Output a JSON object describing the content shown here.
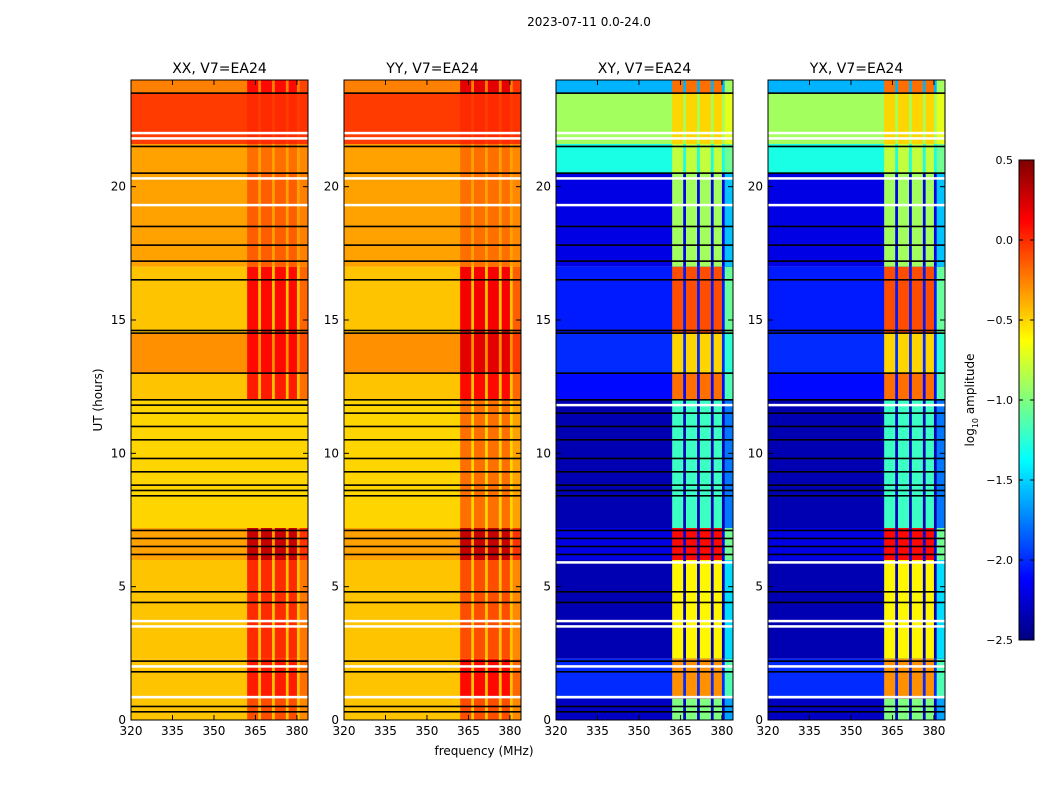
{
  "chart_data": {
    "type": "heatmap",
    "title": "2023-07-11 0.0-24.0",
    "xlabel": "frequency (MHz)",
    "ylabel": "UT (hours)",
    "xlim": [
      320,
      384
    ],
    "ylim": [
      0,
      24
    ],
    "xticks": [
      "320",
      "335",
      "350",
      "365",
      "380"
    ],
    "xtick_values": [
      320,
      335,
      350,
      365,
      380
    ],
    "yticks": [
      "0",
      "5",
      "10",
      "15",
      "20"
    ],
    "ytick_values": [
      0,
      5,
      10,
      15,
      20
    ],
    "colorbar": {
      "label_prefix": "log",
      "label_sub": "10",
      "label_suffix": " amplitude",
      "range": [
        -2.5,
        0.5
      ],
      "ticks": [
        "0.5",
        "0.0",
        "−0.5",
        "−1.0",
        "−1.5",
        "−2.0",
        "−2.5"
      ],
      "tick_values": [
        0.5,
        0.0,
        -0.5,
        -1.0,
        -1.5,
        -2.0,
        -2.5
      ],
      "colormap": "jet"
    },
    "band_columns_mhz": [
      [
        362,
        366
      ],
      [
        367,
        371
      ],
      [
        372,
        376
      ],
      [
        377,
        380
      ]
    ],
    "panels": [
      {
        "title": "XX, V7=EA24",
        "rows": [
          {
            "t": [
              0,
              0.8
            ],
            "bg": -0.45,
            "hi": -0.1
          },
          {
            "t": [
              0.8,
              2.3
            ],
            "bg": -0.45,
            "hi": 0.05
          },
          {
            "t": [
              2.3,
              6.0
            ],
            "bg": -0.45,
            "hi": 0.0
          },
          {
            "t": [
              6.0,
              7.2
            ],
            "bg": -0.35,
            "hi": 0.3
          },
          {
            "t": [
              7.2,
              12.0
            ],
            "bg": -0.5,
            "hi": -0.5
          },
          {
            "t": [
              12.0,
              13.0
            ],
            "bg": -0.45,
            "hi": 0.05
          },
          {
            "t": [
              13.0,
              14.5
            ],
            "bg": -0.3,
            "hi": 0.1
          },
          {
            "t": [
              14.5,
              17.0
            ],
            "bg": -0.45,
            "hi": 0.1
          },
          {
            "t": [
              17.0,
              20.5
            ],
            "bg": -0.35,
            "hi": -0.15
          },
          {
            "t": [
              20.5,
              21.6
            ],
            "bg": -0.35,
            "hi": -0.2
          },
          {
            "t": [
              21.6,
              23.5
            ],
            "bg": -0.05,
            "hi": 0.0
          },
          {
            "t": [
              23.5,
              24.0
            ],
            "bg": -0.25,
            "hi": 0.1
          }
        ],
        "black_lines": [
          0.3,
          0.5,
          1.8,
          2.2,
          4.4,
          4.8,
          6.2,
          6.5,
          6.8,
          7.1,
          8.4,
          8.6,
          8.8,
          9.3,
          9.8,
          10.5,
          11.0,
          11.5,
          11.8,
          12.0,
          13.0,
          14.5,
          14.6,
          16.5,
          17.2,
          17.8,
          18.5,
          20.5,
          21.5,
          23.5
        ],
        "white_lines": [
          0.85,
          2.0,
          3.5,
          3.7,
          19.3,
          20.3,
          21.8,
          22.0
        ]
      },
      {
        "title": "YY, V7=EA24",
        "rows": [
          {
            "t": [
              0,
              0.8
            ],
            "bg": -0.45,
            "hi": -0.1
          },
          {
            "t": [
              0.8,
              2.3
            ],
            "bg": -0.45,
            "hi": 0.1
          },
          {
            "t": [
              2.3,
              6.0
            ],
            "bg": -0.45,
            "hi": -0.1
          },
          {
            "t": [
              6.0,
              7.2
            ],
            "bg": -0.35,
            "hi": 0.3
          },
          {
            "t": [
              7.2,
              12.0
            ],
            "bg": -0.5,
            "hi": -0.2
          },
          {
            "t": [
              12.0,
              13.0
            ],
            "bg": -0.45,
            "hi": 0.1
          },
          {
            "t": [
              13.0,
              14.5
            ],
            "bg": -0.3,
            "hi": 0.2
          },
          {
            "t": [
              14.5,
              17.0
            ],
            "bg": -0.45,
            "hi": 0.15
          },
          {
            "t": [
              17.0,
              20.5
            ],
            "bg": -0.35,
            "hi": -0.2
          },
          {
            "t": [
              20.5,
              21.6
            ],
            "bg": -0.35,
            "hi": -0.2
          },
          {
            "t": [
              21.6,
              23.5
            ],
            "bg": -0.05,
            "hi": 0.0
          },
          {
            "t": [
              23.5,
              24.0
            ],
            "bg": -0.25,
            "hi": 0.2
          }
        ],
        "black_lines": [
          0.3,
          0.5,
          1.8,
          2.2,
          4.4,
          4.8,
          6.2,
          6.5,
          6.8,
          7.1,
          8.4,
          8.6,
          8.8,
          9.3,
          9.8,
          10.5,
          11.0,
          11.5,
          11.8,
          12.0,
          13.0,
          14.5,
          14.6,
          16.5,
          17.2,
          17.8,
          18.5,
          20.5,
          21.5,
          23.5
        ],
        "white_lines": [
          0.85,
          2.0,
          3.5,
          3.7,
          19.3,
          20.3,
          21.8,
          22.0
        ]
      },
      {
        "title": "XY, V7=EA24",
        "rows": [
          {
            "t": [
              0,
              0.8
            ],
            "bg": -2.3,
            "hi": -1.0
          },
          {
            "t": [
              0.8,
              2.3
            ],
            "bg": -2.0,
            "hi": -0.3
          },
          {
            "t": [
              2.3,
              6.0
            ],
            "bg": -2.35,
            "hi": -0.6
          },
          {
            "t": [
              6.0,
              7.2
            ],
            "bg": -2.2,
            "hi": 0.1
          },
          {
            "t": [
              7.2,
              12.0
            ],
            "bg": -2.35,
            "hi": -1.2
          },
          {
            "t": [
              12.0,
              13.0
            ],
            "bg": -2.1,
            "hi": -0.2
          },
          {
            "t": [
              13.0,
              14.5
            ],
            "bg": -2.0,
            "hi": -0.5
          },
          {
            "t": [
              14.5,
              17.0
            ],
            "bg": -2.05,
            "hi": -0.1
          },
          {
            "t": [
              17.0,
              20.5
            ],
            "bg": -2.2,
            "hi": -0.9
          },
          {
            "t": [
              20.5,
              21.6
            ],
            "bg": -1.3,
            "hi": -0.8
          },
          {
            "t": [
              21.6,
              23.5
            ],
            "bg": -0.9,
            "hi": -0.5
          },
          {
            "t": [
              23.5,
              24.0
            ],
            "bg": -1.6,
            "hi": -0.2
          }
        ],
        "black_lines": [
          0.3,
          0.5,
          1.8,
          2.2,
          4.4,
          4.8,
          6.2,
          6.5,
          6.8,
          7.1,
          8.4,
          8.6,
          8.8,
          9.3,
          9.8,
          10.5,
          11.0,
          11.5,
          11.8,
          12.0,
          13.0,
          14.5,
          14.6,
          16.5,
          17.2,
          17.8,
          18.5,
          20.5,
          21.5,
          23.5
        ],
        "white_lines": [
          0.85,
          2.0,
          3.5,
          3.7,
          5.9,
          11.8,
          19.3,
          20.3,
          21.8,
          22.0
        ]
      },
      {
        "title": "YX, V7=EA24",
        "rows": [
          {
            "t": [
              0,
              0.8
            ],
            "bg": -2.3,
            "hi": -1.0
          },
          {
            "t": [
              0.8,
              2.3
            ],
            "bg": -2.0,
            "hi": -0.3
          },
          {
            "t": [
              2.3,
              6.0
            ],
            "bg": -2.35,
            "hi": -0.6
          },
          {
            "t": [
              6.0,
              7.2
            ],
            "bg": -2.2,
            "hi": 0.1
          },
          {
            "t": [
              7.2,
              12.0
            ],
            "bg": -2.35,
            "hi": -1.2
          },
          {
            "t": [
              12.0,
              13.0
            ],
            "bg": -2.1,
            "hi": -0.2
          },
          {
            "t": [
              13.0,
              14.5
            ],
            "bg": -2.0,
            "hi": -0.5
          },
          {
            "t": [
              14.5,
              17.0
            ],
            "bg": -2.05,
            "hi": -0.1
          },
          {
            "t": [
              17.0,
              20.5
            ],
            "bg": -2.2,
            "hi": -0.9
          },
          {
            "t": [
              20.5,
              21.6
            ],
            "bg": -1.3,
            "hi": -0.8
          },
          {
            "t": [
              21.6,
              23.5
            ],
            "bg": -0.9,
            "hi": -0.5
          },
          {
            "t": [
              23.5,
              24.0
            ],
            "bg": -1.6,
            "hi": -0.2
          }
        ],
        "black_lines": [
          0.3,
          0.5,
          1.8,
          2.2,
          4.4,
          4.8,
          6.2,
          6.5,
          6.8,
          7.1,
          8.4,
          8.6,
          8.8,
          9.3,
          9.8,
          10.5,
          11.0,
          11.5,
          11.8,
          12.0,
          13.0,
          14.5,
          14.6,
          16.5,
          17.2,
          17.8,
          18.5,
          20.5,
          21.5,
          23.5
        ],
        "white_lines": [
          0.85,
          2.0,
          3.5,
          3.7,
          5.9,
          11.8,
          19.3,
          20.3,
          21.8,
          22.0
        ]
      }
    ]
  }
}
